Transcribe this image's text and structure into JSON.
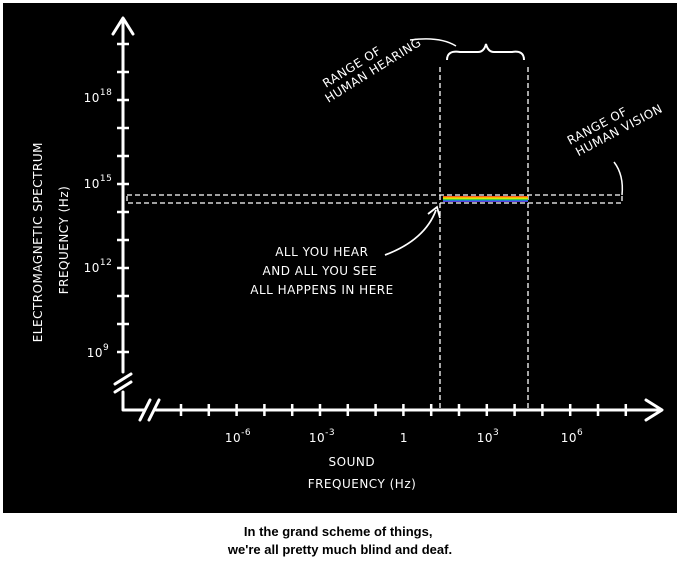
{
  "y_axis": {
    "title_lines": [
      "ELECTROMAGNETIC SPECTRUM",
      "FREQUENCY (Hz)"
    ],
    "tick_labels": [
      {
        "base": "10",
        "exp": "18"
      },
      {
        "base": "10",
        "exp": "15"
      },
      {
        "base": "10",
        "exp": "12"
      },
      {
        "base": "10",
        "exp": "9"
      }
    ]
  },
  "x_axis": {
    "title_lines": [
      "SOUND",
      "FREQUENCY (Hz)"
    ],
    "tick_labels": [
      {
        "base": "10",
        "exp": "-6"
      },
      {
        "base": "10",
        "exp": "-3"
      },
      {
        "base": "1"
      },
      {
        "base": "10",
        "exp": "3"
      },
      {
        "base": "10",
        "exp": "6"
      }
    ]
  },
  "annotations": {
    "hearing": [
      "RANGE OF",
      "HUMAN HEARING"
    ],
    "vision": [
      "RANGE OF",
      "HUMAN VISION"
    ],
    "center": [
      "ALL YOU HEAR",
      "AND ALL YOU SEE",
      "ALL HAPPENS IN HERE"
    ]
  },
  "caption": [
    "In the grand scheme of things,",
    "we're all pretty much blind and deaf."
  ]
}
